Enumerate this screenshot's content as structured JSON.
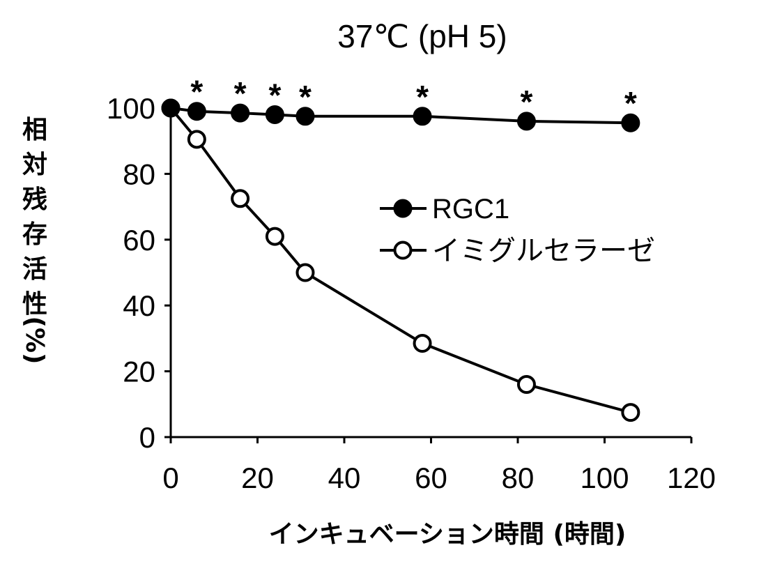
{
  "chart_data": {
    "type": "line",
    "title": "37℃ (pH 5)",
    "xlabel": "インキュベーション時間 (時間)",
    "ylabel_lines": [
      "相",
      "対",
      "残",
      "存",
      "活",
      "性",
      "(%)"
    ],
    "xlim": [
      0,
      120
    ],
    "ylim": [
      0,
      100
    ],
    "x_ticks": [
      "0",
      "20",
      "40",
      "60",
      "80",
      "100",
      "120"
    ],
    "y_ticks": [
      "0",
      "20",
      "40",
      "60",
      "80",
      "100"
    ],
    "grid": false,
    "legend_position": "center-right",
    "series": [
      {
        "name": "RGC1",
        "marker": "filled-circle",
        "color": "#000000",
        "x": [
          0,
          6,
          16,
          24,
          31,
          58,
          82,
          106
        ],
        "y": [
          100,
          99,
          98.5,
          98,
          97.5,
          97.5,
          96,
          95.5
        ]
      },
      {
        "name": "イミグルセラーゼ",
        "marker": "open-circle",
        "color": "#000000",
        "x": [
          0,
          6,
          16,
          24,
          31,
          58,
          82,
          106
        ],
        "y": [
          100,
          90.5,
          72.5,
          61,
          50,
          28.5,
          16,
          7.5
        ]
      }
    ],
    "annotations": [
      {
        "text": "*",
        "x": 6
      },
      {
        "text": "*",
        "x": 16
      },
      {
        "text": "*",
        "x": 24
      },
      {
        "text": "*",
        "x": 31
      },
      {
        "text": "*",
        "x": 58
      },
      {
        "text": "*",
        "x": 82
      },
      {
        "text": "*",
        "x": 106
      }
    ]
  }
}
